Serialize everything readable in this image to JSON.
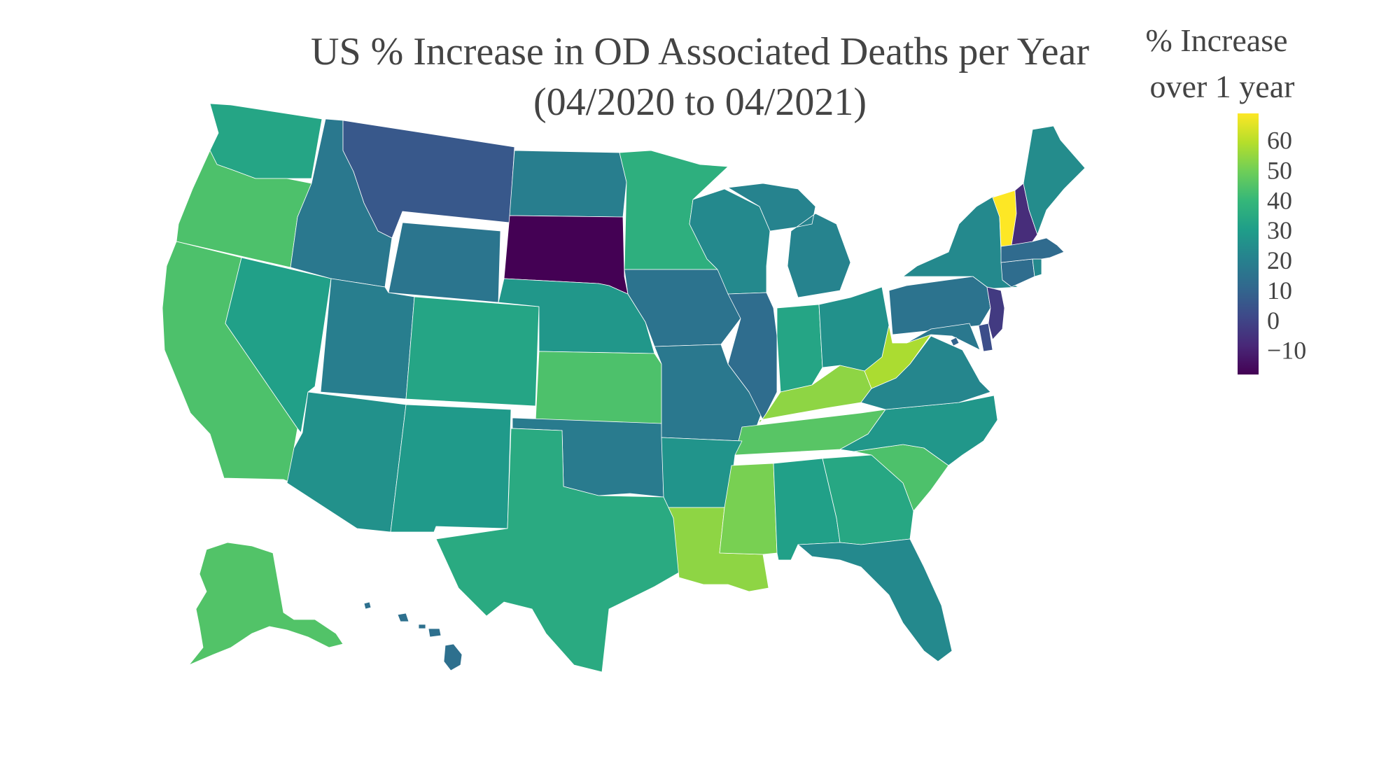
{
  "title_lines": [
    "US % Increase in OD Associated Deaths per Year",
    "(04/2020 to 04/2021)"
  ],
  "colorbar": {
    "title_lines": [
      "% Increase",
      "over 1 year"
    ],
    "min": -18,
    "max": 69,
    "ticks": [
      60,
      50,
      40,
      30,
      20,
      10,
      0,
      -10
    ],
    "tick_labels": [
      "60",
      "50",
      "40",
      "30",
      "20",
      "10",
      "0",
      "−10"
    ],
    "colorscale": [
      "#440154",
      "#482878",
      "#3e4989",
      "#31688e",
      "#26828e",
      "#1f9e89",
      "#35b779",
      "#6ece58",
      "#b5de2b",
      "#fde725"
    ]
  },
  "chart_data": {
    "type": "choropleth",
    "title": "US % Increase in OD Associated Deaths per Year (04/2020 to 04/2021)",
    "colorbar_title": "% Increase over 1 year",
    "states": [
      {
        "id": "AK",
        "value": 45
      },
      {
        "id": "AL",
        "value": 31
      },
      {
        "id": "AR",
        "value": 27
      },
      {
        "id": "AZ",
        "value": 26
      },
      {
        "id": "CA",
        "value": 44
      },
      {
        "id": "CO",
        "value": 33
      },
      {
        "id": "CT",
        "value": 13
      },
      {
        "id": "DC",
        "value": 10
      },
      {
        "id": "DE",
        "value": 3
      },
      {
        "id": "FL",
        "value": 23
      },
      {
        "id": "GA",
        "value": 34
      },
      {
        "id": "HI",
        "value": 14
      },
      {
        "id": "IA",
        "value": 15
      },
      {
        "id": "ID",
        "value": 17
      },
      {
        "id": "IL",
        "value": 13
      },
      {
        "id": "IN",
        "value": 33
      },
      {
        "id": "KS",
        "value": 44
      },
      {
        "id": "KY",
        "value": 54
      },
      {
        "id": "LA",
        "value": 54
      },
      {
        "id": "MA",
        "value": 12
      },
      {
        "id": "MD",
        "value": 17
      },
      {
        "id": "ME",
        "value": 24
      },
      {
        "id": "MI",
        "value": 21
      },
      {
        "id": "MN",
        "value": 37
      },
      {
        "id": "MO",
        "value": 17
      },
      {
        "id": "MS",
        "value": 51
      },
      {
        "id": "MT",
        "value": 6
      },
      {
        "id": "NC",
        "value": 28
      },
      {
        "id": "ND",
        "value": 19
      },
      {
        "id": "NE",
        "value": 28
      },
      {
        "id": "NH",
        "value": -7
      },
      {
        "id": "NJ",
        "value": -3
      },
      {
        "id": "NM",
        "value": 29
      },
      {
        "id": "NV",
        "value": 31
      },
      {
        "id": "NY",
        "value": 23
      },
      {
        "id": "OH",
        "value": 26
      },
      {
        "id": "OK",
        "value": 18
      },
      {
        "id": "OR",
        "value": 44
      },
      {
        "id": "PA",
        "value": 15
      },
      {
        "id": "RI",
        "value": 23
      },
      {
        "id": "SC",
        "value": 44
      },
      {
        "id": "SD",
        "value": -18
      },
      {
        "id": "TN",
        "value": 46
      },
      {
        "id": "TX",
        "value": 35
      },
      {
        "id": "UT",
        "value": 19
      },
      {
        "id": "VA",
        "value": 22
      },
      {
        "id": "VT",
        "value": 69
      },
      {
        "id": "WA",
        "value": 33
      },
      {
        "id": "WI",
        "value": 23
      },
      {
        "id": "WV",
        "value": 58
      },
      {
        "id": "WY",
        "value": 16
      }
    ]
  }
}
